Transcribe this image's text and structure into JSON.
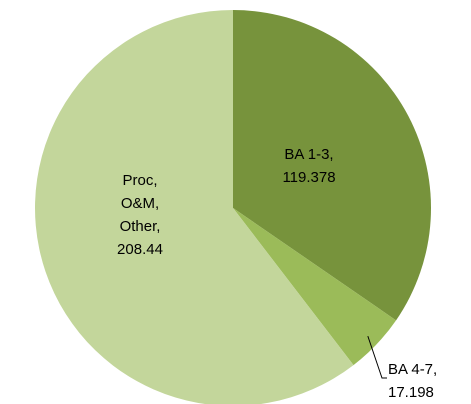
{
  "chart_data": {
    "type": "pie",
    "categories": [
      "BA 1-3,",
      "BA 4-7,",
      "Proc, O&M, Other,"
    ],
    "values": [
      119.378,
      17.198,
      208.44
    ],
    "colors": [
      "#77933c",
      "#9bbb59",
      "#c3d69b"
    ]
  }
}
